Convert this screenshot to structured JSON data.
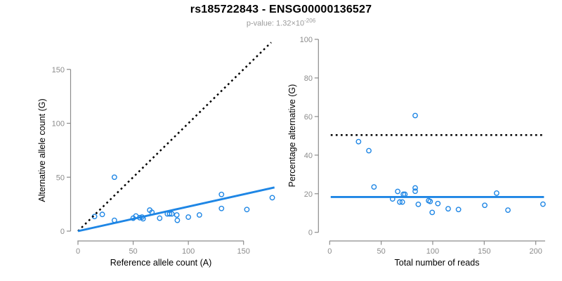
{
  "header": {
    "title": "rs185722843 - ENSG00000136527",
    "subtitle_prefix": "p-value: 1.32×10",
    "subtitle_exponent": "-206"
  },
  "colors": {
    "accent_blue": "#1E86E5",
    "line_black": "#000000",
    "axis_gray": "#8c8c8c",
    "tick_label_gray": "#8c8c8c",
    "axis_title_color": "#000000"
  },
  "chart_data": [
    {
      "type": "scatter",
      "title": "",
      "xlabel": "Reference allele count (A)",
      "ylabel": "Alternative allele count (G)",
      "xticks": [
        0,
        50,
        100,
        150
      ],
      "yticks": [
        0,
        50,
        100,
        150
      ],
      "xlim": [
        0,
        183
      ],
      "ylim": [
        0,
        181
      ],
      "grid": false,
      "points": [
        [
          15,
          13.5
        ],
        [
          22,
          15.5
        ],
        [
          33,
          50
        ],
        [
          33,
          10
        ],
        [
          50,
          12
        ],
        [
          52.5,
          14
        ],
        [
          56,
          12.5
        ],
        [
          58,
          13
        ],
        [
          59,
          11.5
        ],
        [
          65,
          19.5
        ],
        [
          67,
          17.5
        ],
        [
          74,
          12
        ],
        [
          81,
          16
        ],
        [
          83,
          16
        ],
        [
          85,
          16
        ],
        [
          89.5,
          15
        ],
        [
          90,
          10
        ],
        [
          100,
          13
        ],
        [
          110,
          15
        ],
        [
          130,
          34
        ],
        [
          130,
          21
        ],
        [
          153,
          20
        ],
        [
          176,
          31
        ]
      ],
      "lines": [
        {
          "name": "identity-line",
          "style": "dotted",
          "color": "black",
          "from": [
            0,
            0
          ],
          "to": [
            175,
            175
          ]
        },
        {
          "name": "regression-line",
          "style": "solid",
          "color": "blue",
          "from": [
            0,
            0
          ],
          "to": [
            178,
            40.5
          ]
        }
      ]
    },
    {
      "type": "scatter",
      "title": "",
      "xlabel": "Total number of reads",
      "ylabel": "Percentage alternative (G)",
      "xticks": [
        0,
        50,
        100,
        150,
        200
      ],
      "yticks": [
        0,
        20,
        40,
        60,
        80,
        100
      ],
      "xlim": [
        0,
        209
      ],
      "ylim": [
        0,
        100
      ],
      "grid": false,
      "points": [
        [
          28,
          47
        ],
        [
          38,
          42.3
        ],
        [
          43,
          23.5
        ],
        [
          61,
          17.3
        ],
        [
          66,
          21.2
        ],
        [
          68,
          15.7
        ],
        [
          70.5,
          15.7
        ],
        [
          71.5,
          19.7
        ],
        [
          73,
          19.7
        ],
        [
          83,
          60.5
        ],
        [
          83,
          23
        ],
        [
          83,
          21.3
        ],
        [
          86,
          14.5
        ],
        [
          96,
          16.4
        ],
        [
          97.5,
          16
        ],
        [
          99.5,
          10.3
        ],
        [
          105,
          14.9
        ],
        [
          115,
          12.2
        ],
        [
          125,
          11.8
        ],
        [
          150.5,
          14
        ],
        [
          162,
          20.3
        ],
        [
          173,
          11.5
        ],
        [
          207,
          14.6
        ]
      ],
      "lines": [
        {
          "name": "fifty-percent-line",
          "style": "dotted",
          "color": "black",
          "from": [
            1,
            50.4
          ],
          "to": [
            208,
            50.4
          ]
        },
        {
          "name": "mean-percentage-line",
          "style": "solid",
          "color": "blue",
          "from": [
            1,
            18.3
          ],
          "to": [
            208,
            18.3
          ]
        }
      ]
    }
  ]
}
